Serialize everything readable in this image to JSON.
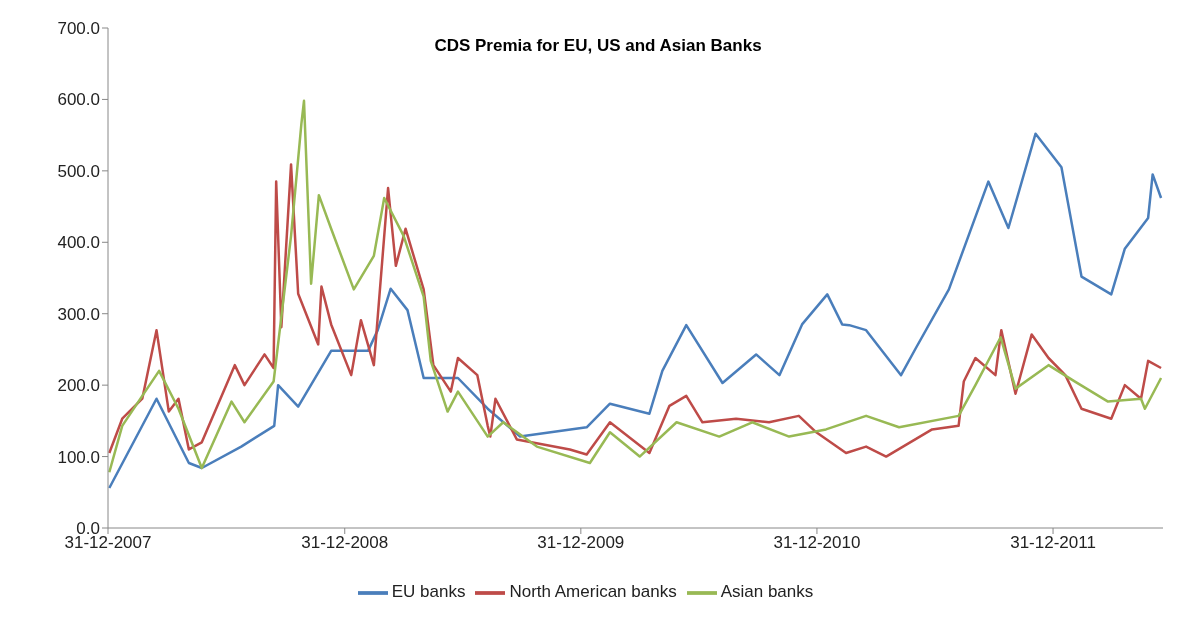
{
  "chart_data": {
    "type": "line",
    "title": "CDS Premia for EU, US and Asian Banks",
    "xlim": [
      "2007-12-31",
      "2012-06-18"
    ],
    "xticks": [
      {
        "value": "2007-12-31",
        "label": "31-12-2007"
      },
      {
        "value": "2008-12-31",
        "label": "31-12-2008"
      },
      {
        "value": "2009-12-31",
        "label": "31-12-2009"
      },
      {
        "value": "2010-12-31",
        "label": "31-12-2010"
      },
      {
        "value": "2011-12-31",
        "label": "31-12-2011"
      }
    ],
    "ylim": [
      0,
      700
    ],
    "yticks": [
      {
        "value": 0,
        "label": "0.0"
      },
      {
        "value": 100,
        "label": "100.0"
      },
      {
        "value": 200,
        "label": "200.0"
      },
      {
        "value": 300,
        "label": "300.0"
      },
      {
        "value": 400,
        "label": "400.0"
      },
      {
        "value": 500,
        "label": "500.0"
      },
      {
        "value": 600,
        "label": "600.0"
      },
      {
        "value": 700,
        "label": "700.0"
      }
    ],
    "grid": false,
    "legend": "bottom",
    "marker": "none",
    "line_style": "solid",
    "series": [
      {
        "name": "EU banks",
        "color": "#4a7ebb",
        "x": [
          "2008-01-02",
          "2008-03-15",
          "2008-05-04",
          "2008-05-24",
          "2008-07-24",
          "2008-09-13",
          "2008-09-19",
          "2008-10-20",
          "2008-12-10",
          "2009-02-05",
          "2009-02-20",
          "2009-03-12",
          "2009-04-07",
          "2009-05-02",
          "2009-06-24",
          "2009-08-09",
          "2009-09-28",
          "2010-01-09",
          "2010-02-14",
          "2010-04-16",
          "2010-05-06",
          "2010-06-12",
          "2010-08-07",
          "2010-09-28",
          "2010-11-03",
          "2010-12-08",
          "2011-01-16",
          "2011-02-08",
          "2011-02-19",
          "2011-03-17",
          "2011-05-10",
          "2011-06-02",
          "2011-07-23",
          "2011-09-22",
          "2011-10-23",
          "2011-12-04",
          "2012-01-13",
          "2012-02-13",
          "2012-03-30",
          "2012-04-20",
          "2012-05-26",
          "2012-06-02",
          "2012-06-15"
        ],
        "values": [
          56,
          181,
          91,
          84,
          114,
          143,
          200,
          170,
          248,
          248,
          277,
          335,
          305,
          210,
          210,
          167,
          128,
          141,
          174,
          160,
          220,
          284,
          203,
          243,
          214,
          285,
          327,
          285,
          284,
          277,
          214,
          252,
          334,
          485,
          420,
          552,
          505,
          352,
          327,
          391,
          434,
          495,
          462
        ]
      },
      {
        "name": "North American banks",
        "color": "#be4b48",
        "x": [
          "2008-01-02",
          "2008-01-22",
          "2008-02-22",
          "2008-03-15",
          "2008-04-03",
          "2008-04-18",
          "2008-05-04",
          "2008-05-24",
          "2008-07-14",
          "2008-07-29",
          "2008-08-29",
          "2008-09-12",
          "2008-09-16",
          "2008-09-24",
          "2008-10-09",
          "2008-10-20",
          "2008-11-20",
          "2008-11-25",
          "2008-12-10",
          "2009-01-10",
          "2009-01-25",
          "2009-02-14",
          "2009-03-08",
          "2009-03-20",
          "2009-04-04",
          "2009-05-02",
          "2009-05-17",
          "2009-06-13",
          "2009-06-24",
          "2009-07-24",
          "2009-08-09",
          "2009-08-13",
          "2009-08-21",
          "2009-09-23",
          "2009-12-14",
          "2010-01-09",
          "2010-02-14",
          "2010-04-16",
          "2010-05-17",
          "2010-06-12",
          "2010-07-07",
          "2010-08-28",
          "2010-10-18",
          "2010-12-03",
          "2010-12-30",
          "2011-02-14",
          "2011-03-17",
          "2011-04-17",
          "2011-06-27",
          "2011-08-07",
          "2011-08-15",
          "2011-09-02",
          "2011-10-03",
          "2011-10-12",
          "2011-11-03",
          "2011-11-28",
          "2011-12-24",
          "2012-01-19",
          "2012-02-13",
          "2012-03-30",
          "2012-04-20",
          "2012-05-15",
          "2012-05-26",
          "2012-06-15"
        ],
        "values": [
          105,
          153,
          181,
          277,
          163,
          181,
          110,
          120,
          228,
          200,
          243,
          224,
          485,
          281,
          509,
          328,
          257,
          338,
          285,
          214,
          291,
          228,
          476,
          367,
          419,
          334,
          228,
          191,
          238,
          214,
          143,
          128,
          181,
          124,
          110,
          103,
          148,
          105,
          171,
          185,
          148,
          153,
          148,
          157,
          134,
          105,
          114,
          100,
          138,
          143,
          205,
          238,
          214,
          277,
          188,
          271,
          238,
          214,
          167,
          153,
          200,
          181,
          234,
          224
        ]
      },
      {
        "name": "Asian banks",
        "color": "#98b954",
        "x": [
          "2008-01-02",
          "2008-01-22",
          "2008-02-22",
          "2008-03-19",
          "2008-04-18",
          "2008-05-24",
          "2008-07-09",
          "2008-07-29",
          "2008-09-12",
          "2008-10-09",
          "2008-10-25",
          "2008-10-29",
          "2008-11-09",
          "2008-11-21",
          "2008-12-10",
          "2009-01-14",
          "2009-02-14",
          "2009-03-02",
          "2009-04-01",
          "2009-05-02",
          "2009-05-13",
          "2009-06-08",
          "2009-06-24",
          "2009-08-09",
          "2009-09-02",
          "2009-10-24",
          "2010-01-14",
          "2010-02-14",
          "2010-04-01",
          "2010-05-28",
          "2010-08-02",
          "2010-09-22",
          "2010-11-18",
          "2011-01-14",
          "2011-03-17",
          "2011-05-07",
          "2011-08-07",
          "2011-09-02",
          "2011-10-11",
          "2011-11-03",
          "2011-12-24",
          "2012-02-03",
          "2012-03-25",
          "2012-05-15",
          "2012-05-21",
          "2012-06-15"
        ],
        "values": [
          78,
          143,
          185,
          220,
          167,
          84,
          177,
          148,
          205,
          409,
          566,
          598,
          342,
          466,
          419,
          334,
          381,
          462,
          409,
          324,
          234,
          163,
          191,
          128,
          148,
          114,
          91,
          134,
          100,
          148,
          128,
          148,
          128,
          138,
          157,
          141,
          157,
          200,
          267,
          195,
          228,
          205,
          177,
          181,
          167,
          210
        ]
      }
    ]
  }
}
